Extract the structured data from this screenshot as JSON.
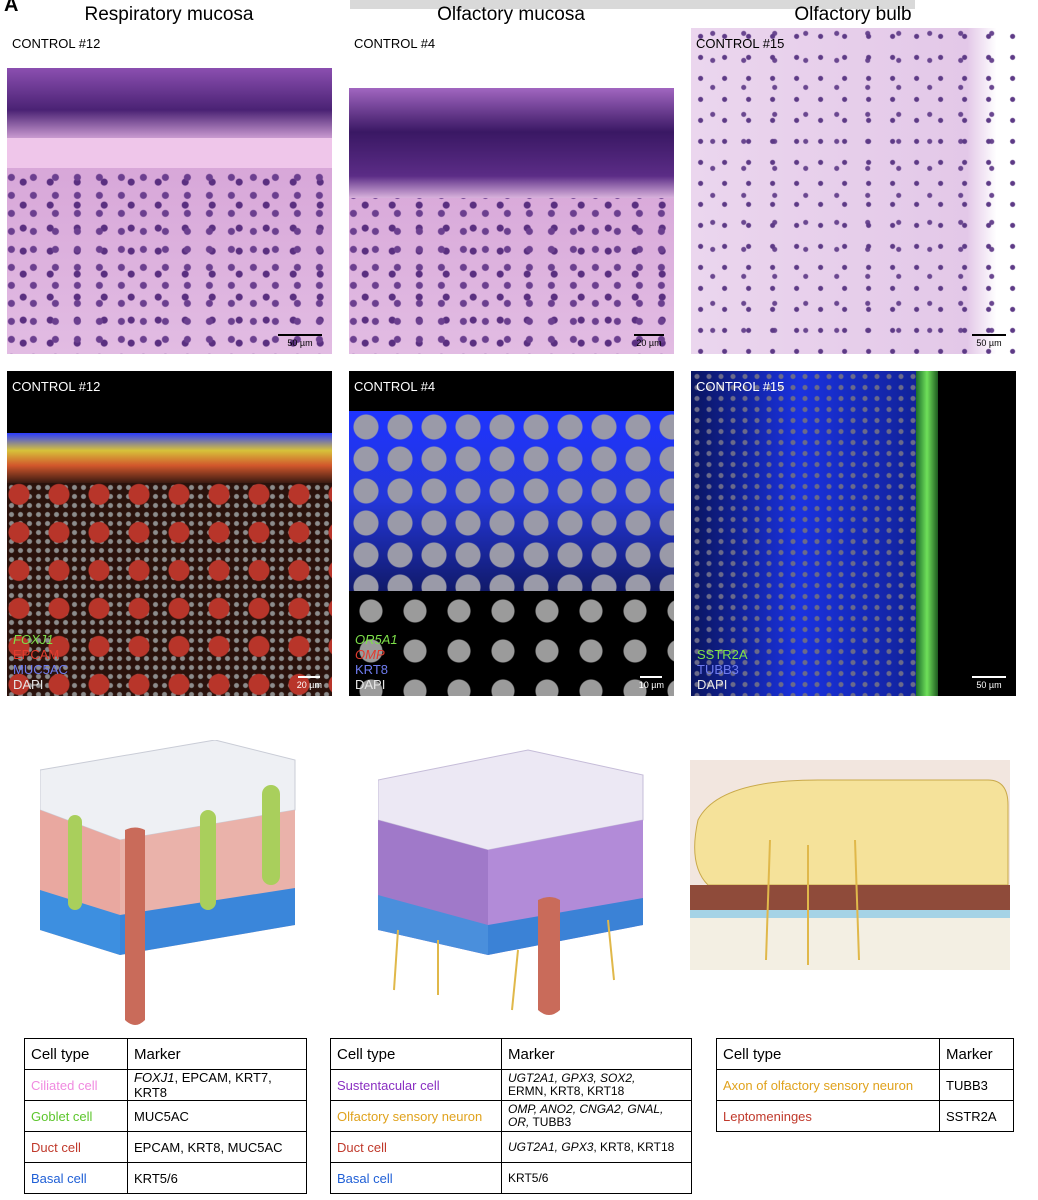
{
  "panel_letter": "A",
  "columns": [
    {
      "title": "Respiratory mucosa"
    },
    {
      "title": "Olfactory mucosa"
    },
    {
      "title": "Olfactory bulb"
    }
  ],
  "he_row": [
    {
      "label": "CONTROL #12",
      "scale": "50 µm"
    },
    {
      "label": "CONTROL #4",
      "scale": "20 µm"
    },
    {
      "label": "CONTROL #15",
      "scale": "50 µm"
    }
  ],
  "fluor_row": [
    {
      "label": "CONTROL #12",
      "scale": "20 µm",
      "legend": [
        {
          "text": "FOXJ1",
          "color": "#7de04a",
          "italic": true
        },
        {
          "text": "EPCAM",
          "color": "#e23b2e",
          "italic": false
        },
        {
          "text": "MUC5AC",
          "color": "#6f7cf0",
          "italic": false
        },
        {
          "text": "DAPI",
          "color": "#e6e6e6",
          "italic": false
        }
      ]
    },
    {
      "label": "CONTROL #4",
      "scale": "10 µm",
      "legend": [
        {
          "text": "OR5A1",
          "color": "#7de04a",
          "italic": true
        },
        {
          "text": "OMP",
          "color": "#e23b2e",
          "italic": true
        },
        {
          "text": "KRT8",
          "color": "#6f7cf0",
          "italic": false
        },
        {
          "text": "DAPI",
          "color": "#e6e6e6",
          "italic": false
        }
      ]
    },
    {
      "label": "CONTROL #15",
      "scale": "50 µm",
      "legend": [
        {
          "text": "SSTR2A",
          "color": "#7de04a",
          "italic": false
        },
        {
          "text": "TUBB3",
          "color": "#6f7cf0",
          "italic": false
        },
        {
          "text": "DAPI",
          "color": "#e6e6e6",
          "italic": false
        }
      ]
    }
  ],
  "tables": [
    {
      "header": [
        "Cell type",
        "Marker"
      ],
      "rows": [
        {
          "cell": "Ciliated cell",
          "color": "#f08ae0",
          "marker_italic": "FOXJ1",
          "marker": ", EPCAM, KRT7, KRT8"
        },
        {
          "cell": "Goblet cell",
          "color": "#5cc62c",
          "marker_italic": "",
          "marker": "MUC5AC"
        },
        {
          "cell": "Duct cell",
          "color": "#c0392b",
          "marker_italic": "",
          "marker": "EPCAM, KRT8, MUC5AC"
        },
        {
          "cell": "Basal cell",
          "color": "#1f5fd6",
          "marker_italic": "",
          "marker": "KRT5/6"
        }
      ]
    },
    {
      "header": [
        "Cell type",
        "Marker"
      ],
      "rows": [
        {
          "cell": "Sustentacular cell",
          "color": "#8a2fc2",
          "marker_italic": "UGT2A1, GPX3, SOX2,",
          "marker": "ERMN, KRT8, KRT18"
        },
        {
          "cell": "Olfactory sensory neuron",
          "color": "#e0a21c",
          "marker_italic": "OMP, ANO2, CNGA2, GNAL, OR,",
          "marker": "TUBB3"
        },
        {
          "cell": "Duct cell",
          "color": "#c0392b",
          "marker_italic": "UGT2A1, GPX3",
          "marker": ", KRT8, KRT18"
        },
        {
          "cell": "Basal cell",
          "color": "#1f5fd6",
          "marker_italic": "",
          "marker": "KRT5/6"
        }
      ]
    },
    {
      "header": [
        "Cell type",
        "Marker"
      ],
      "rows": [
        {
          "cell": "Axon of olfactory sensory neuron",
          "color": "#e0a21c",
          "marker_italic": "",
          "marker": "TUBB3"
        },
        {
          "cell": "Leptomeninges",
          "color": "#c0392b",
          "marker_italic": "",
          "marker": "SSTR2A"
        }
      ]
    }
  ]
}
